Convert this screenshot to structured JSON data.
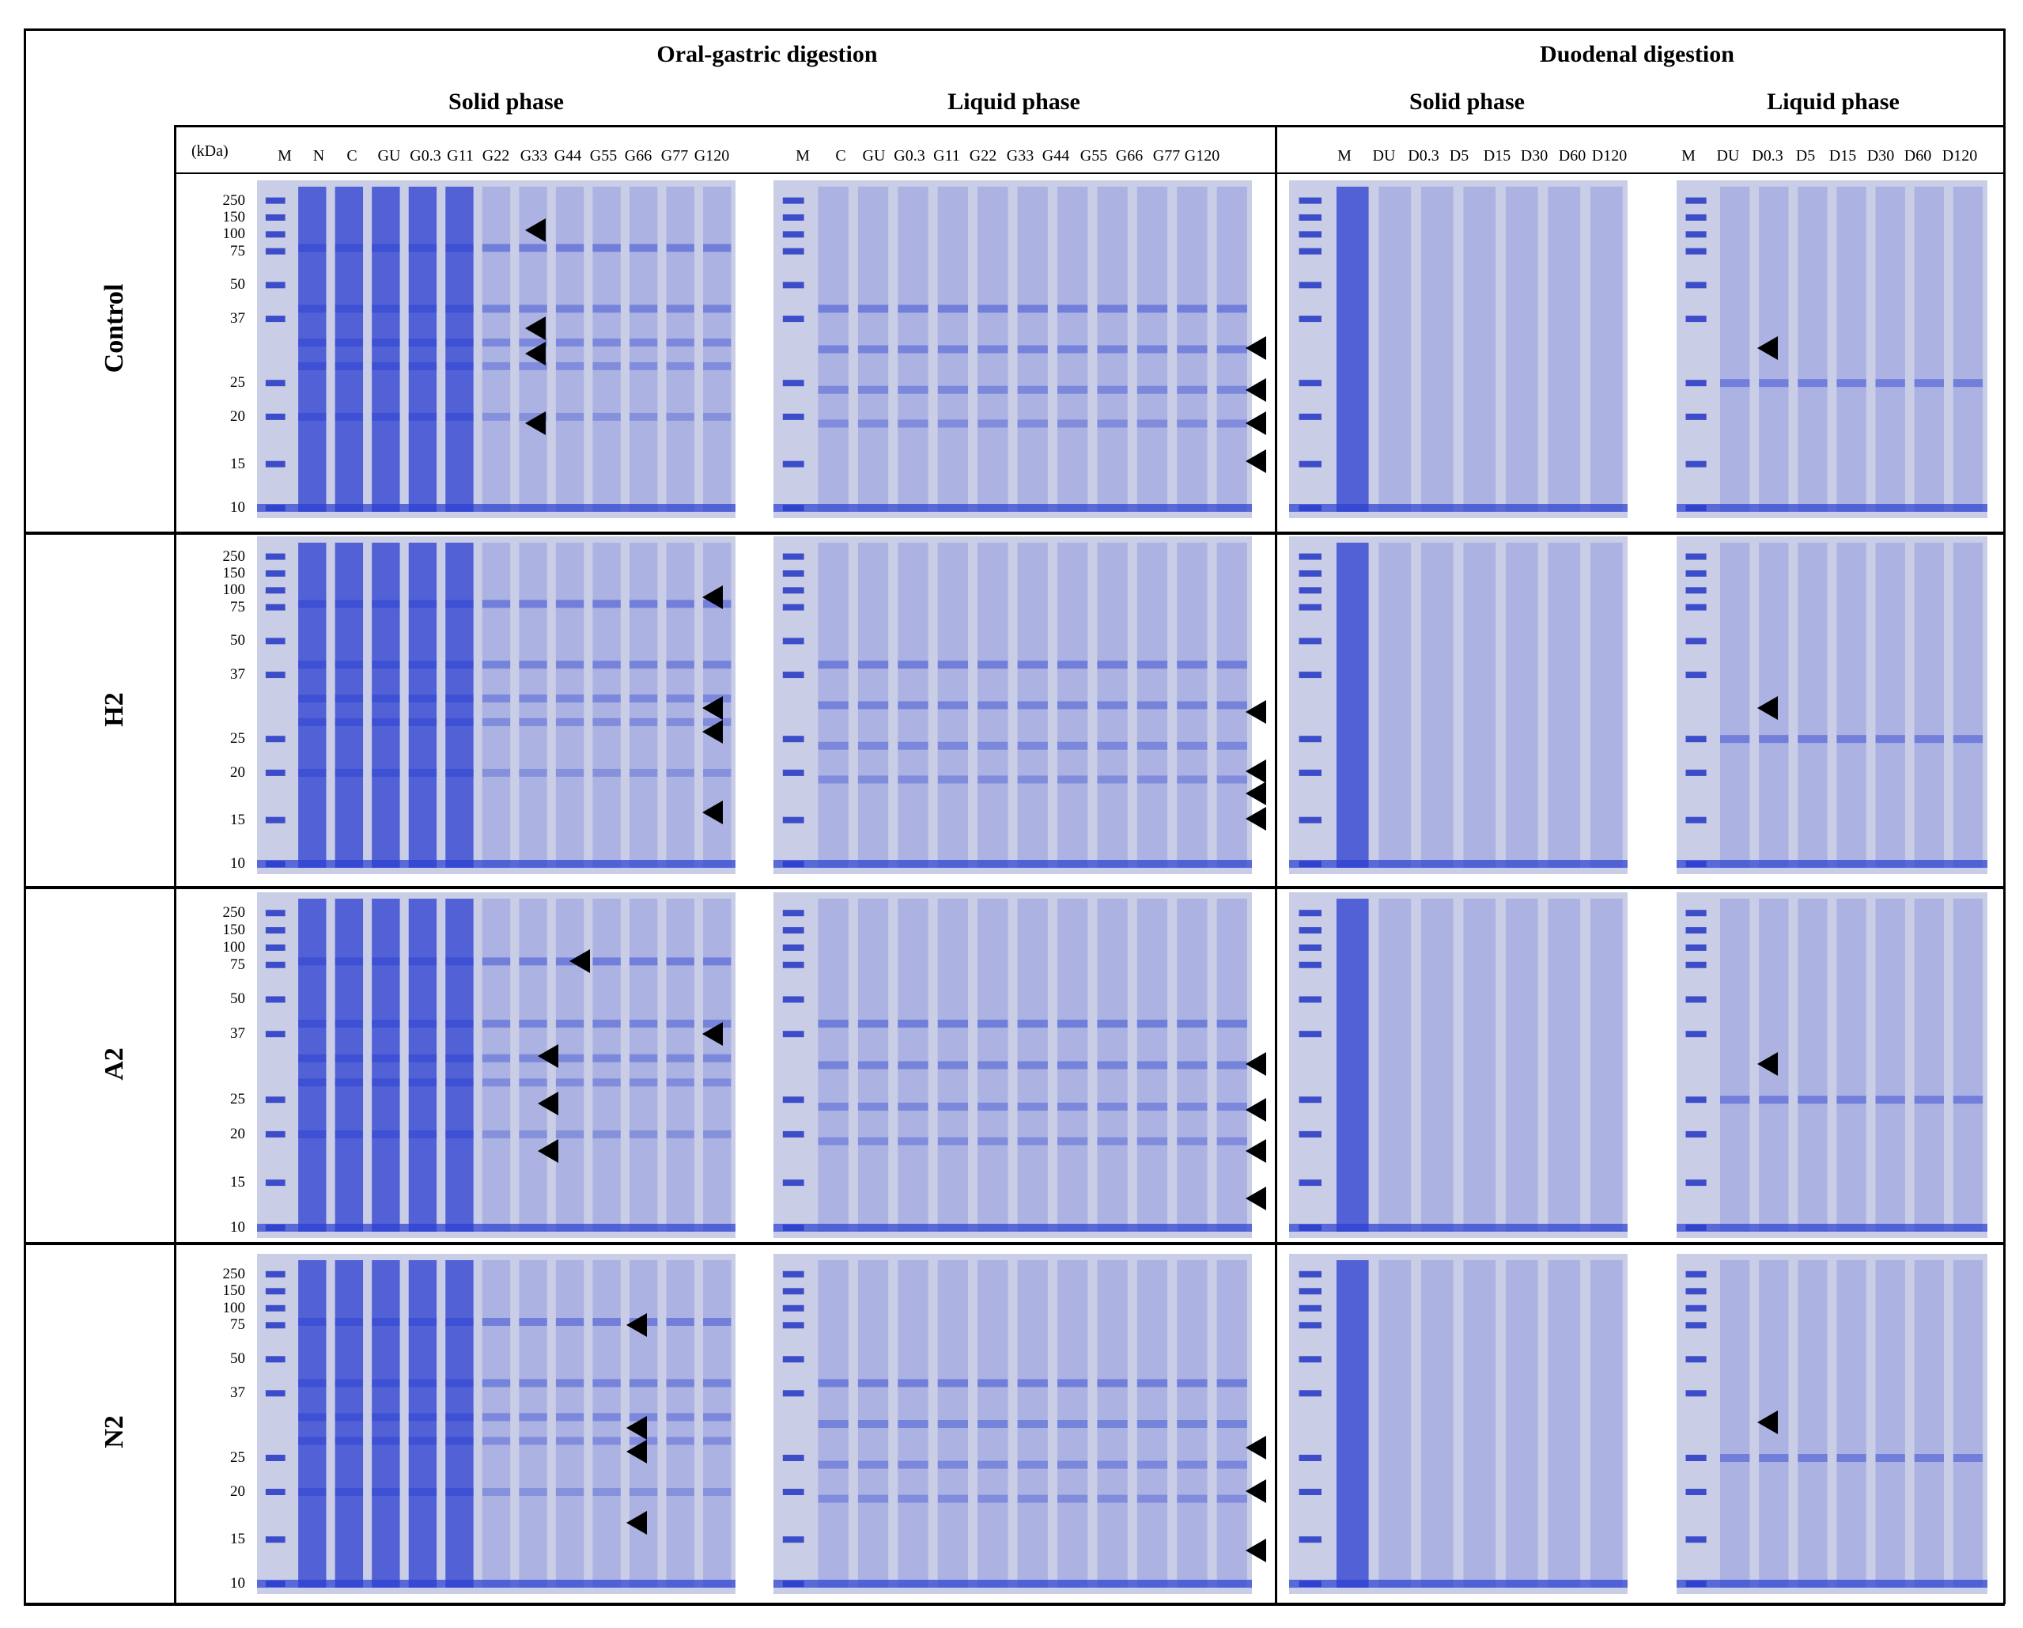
{
  "headers": {
    "oral_gastric": "Oral-gastric digestion",
    "duodenal": "Duodenal digestion",
    "solid": "Solid phase",
    "liquid": "Liquid phase"
  },
  "kda_label": "(kDa)",
  "lanes": {
    "og_solid": [
      "M",
      "N",
      "C",
      "GU",
      "G0.3",
      "G11",
      "G22",
      "G33",
      "G44",
      "G55",
      "G66",
      "G77",
      "G120"
    ],
    "og_liquid": [
      "M",
      "C",
      "GU",
      "G0.3",
      "G11",
      "G22",
      "G33",
      "G44",
      "G55",
      "G66",
      "G77",
      "G120"
    ],
    "du_solid": [
      "M",
      "DU",
      "D0.3",
      "D5",
      "D15",
      "D30",
      "D60",
      "D120"
    ],
    "du_liquid": [
      "M",
      "DU",
      "D0.3",
      "D5",
      "D15",
      "D30",
      "D60",
      "D120"
    ]
  },
  "markers": [
    "250",
    "150",
    "100",
    "75",
    "50",
    "37",
    "25",
    "20",
    "15",
    "10"
  ],
  "rows": [
    "Control",
    "H2",
    "A2",
    "N2"
  ],
  "colors": {
    "gel_bg": "#c9cde6",
    "band": "#2a3ed0",
    "marker": "#2436c4",
    "dark_lane": "#3046e0"
  }
}
